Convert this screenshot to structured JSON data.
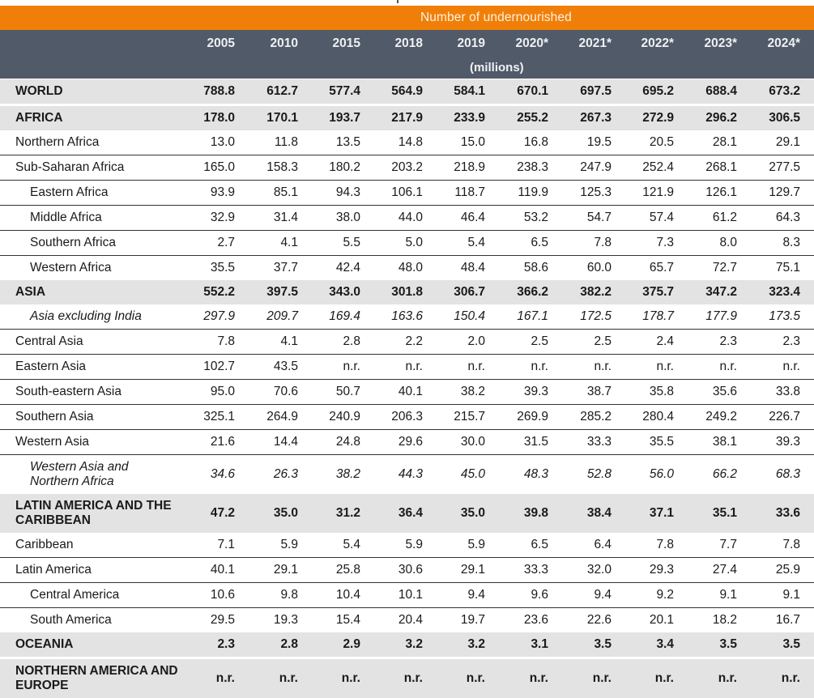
{
  "table": {
    "group_header": "Number of undernourished",
    "units": "(millions)",
    "columns": [
      "2005",
      "2010",
      "2015",
      "2018",
      "2019",
      "2020*",
      "2021*",
      "2022*",
      "2023*",
      "2024*"
    ],
    "rows": [
      {
        "name": "WORLD",
        "type": "region",
        "values": [
          "788.8",
          "612.7",
          "577.4",
          "564.9",
          "584.1",
          "670.1",
          "697.5",
          "695.2",
          "688.4",
          "673.2"
        ]
      },
      {
        "name": "AFRICA",
        "type": "region",
        "values": [
          "178.0",
          "170.1",
          "193.7",
          "217.9",
          "233.9",
          "255.2",
          "267.3",
          "272.9",
          "296.2",
          "306.5"
        ]
      },
      {
        "name": "Northern Africa",
        "type": "sub",
        "values": [
          "13.0",
          "11.8",
          "13.5",
          "14.8",
          "15.0",
          "16.8",
          "19.5",
          "20.5",
          "28.1",
          "29.1"
        ]
      },
      {
        "name": "Sub-Saharan Africa",
        "type": "sub",
        "values": [
          "165.0",
          "158.3",
          "180.2",
          "203.2",
          "218.9",
          "238.3",
          "247.9",
          "252.4",
          "268.1",
          "277.5"
        ]
      },
      {
        "name": "Eastern Africa",
        "type": "indent",
        "values": [
          "93.9",
          "85.1",
          "94.3",
          "106.1",
          "118.7",
          "119.9",
          "125.3",
          "121.9",
          "126.1",
          "129.7"
        ]
      },
      {
        "name": "Middle Africa",
        "type": "indent",
        "values": [
          "32.9",
          "31.4",
          "38.0",
          "44.0",
          "46.4",
          "53.2",
          "54.7",
          "57.4",
          "61.2",
          "64.3"
        ]
      },
      {
        "name": "Southern Africa",
        "type": "indent",
        "values": [
          "2.7",
          "4.1",
          "5.5",
          "5.0",
          "5.4",
          "6.5",
          "7.8",
          "7.3",
          "8.0",
          "8.3"
        ]
      },
      {
        "name": "Western Africa",
        "type": "indent",
        "values": [
          "35.5",
          "37.7",
          "42.4",
          "48.0",
          "48.4",
          "58.6",
          "60.0",
          "65.7",
          "72.7",
          "75.1"
        ]
      },
      {
        "name": "ASIA",
        "type": "region",
        "values": [
          "552.2",
          "397.5",
          "343.0",
          "301.8",
          "306.7",
          "366.2",
          "382.2",
          "375.7",
          "347.2",
          "323.4"
        ]
      },
      {
        "name": "Asia excluding India",
        "type": "indent-italic",
        "values": [
          "297.9",
          "209.7",
          "169.4",
          "163.6",
          "150.4",
          "167.1",
          "172.5",
          "178.7",
          "177.9",
          "173.5"
        ]
      },
      {
        "name": "Central Asia",
        "type": "sub",
        "values": [
          "7.8",
          "4.1",
          "2.8",
          "2.2",
          "2.0",
          "2.5",
          "2.5",
          "2.4",
          "2.3",
          "2.3"
        ]
      },
      {
        "name": "Eastern Asia",
        "type": "sub",
        "values": [
          "102.7",
          "43.5",
          "n.r.",
          "n.r.",
          "n.r.",
          "n.r.",
          "n.r.",
          "n.r.",
          "n.r.",
          "n.r."
        ]
      },
      {
        "name": "South-eastern Asia",
        "type": "sub",
        "values": [
          "95.0",
          "70.6",
          "50.7",
          "40.1",
          "38.2",
          "39.3",
          "38.7",
          "35.8",
          "35.6",
          "33.8"
        ]
      },
      {
        "name": "Southern Asia",
        "type": "sub",
        "values": [
          "325.1",
          "264.9",
          "240.9",
          "206.3",
          "215.7",
          "269.9",
          "285.2",
          "280.4",
          "249.2",
          "226.7"
        ]
      },
      {
        "name": "Western Asia",
        "type": "sub",
        "values": [
          "21.6",
          "14.4",
          "24.8",
          "29.6",
          "30.0",
          "31.5",
          "33.3",
          "35.5",
          "38.1",
          "39.3"
        ]
      },
      {
        "name": "Western Asia and Northern Africa",
        "type": "indent-italic-tall",
        "values": [
          "34.6",
          "26.3",
          "38.2",
          "44.3",
          "45.0",
          "48.3",
          "52.8",
          "56.0",
          "66.2",
          "68.3"
        ]
      },
      {
        "name": "LATIN AMERICA AND THE CARIBBEAN",
        "type": "region-tall",
        "values": [
          "47.2",
          "35.0",
          "31.2",
          "36.4",
          "35.0",
          "39.8",
          "38.4",
          "37.1",
          "35.1",
          "33.6"
        ]
      },
      {
        "name": "Caribbean",
        "type": "sub",
        "values": [
          "7.1",
          "5.9",
          "5.4",
          "5.9",
          "5.9",
          "6.5",
          "6.4",
          "7.8",
          "7.7",
          "7.8"
        ]
      },
      {
        "name": "Latin America",
        "type": "sub",
        "values": [
          "40.1",
          "29.1",
          "25.8",
          "30.6",
          "29.1",
          "33.3",
          "32.0",
          "29.3",
          "27.4",
          "25.9"
        ]
      },
      {
        "name": "Central America",
        "type": "indent",
        "values": [
          "10.6",
          "9.8",
          "10.4",
          "10.1",
          "9.4",
          "9.6",
          "9.4",
          "9.2",
          "9.1",
          "9.1"
        ]
      },
      {
        "name": "South America",
        "type": "indent",
        "values": [
          "29.5",
          "19.3",
          "15.4",
          "20.4",
          "19.7",
          "23.6",
          "22.6",
          "20.1",
          "18.2",
          "16.7"
        ]
      },
      {
        "name": "OCEANIA",
        "type": "region",
        "values": [
          "2.3",
          "2.8",
          "2.9",
          "3.2",
          "3.2",
          "3.1",
          "3.5",
          "3.4",
          "3.5",
          "3.5"
        ]
      },
      {
        "name": "NORTHERN AMERICA AND EUROPE",
        "type": "region-tall",
        "values": [
          "n.r.",
          "n.r.",
          "n.r.",
          "n.r.",
          "n.r.",
          "n.r.",
          "n.r.",
          "n.r.",
          "n.r.",
          "n.r."
        ]
      }
    ]
  },
  "colors": {
    "orange_header": "#f07f09",
    "dark_header": "#515a69",
    "region_row_bg": "#e3e3e3"
  }
}
